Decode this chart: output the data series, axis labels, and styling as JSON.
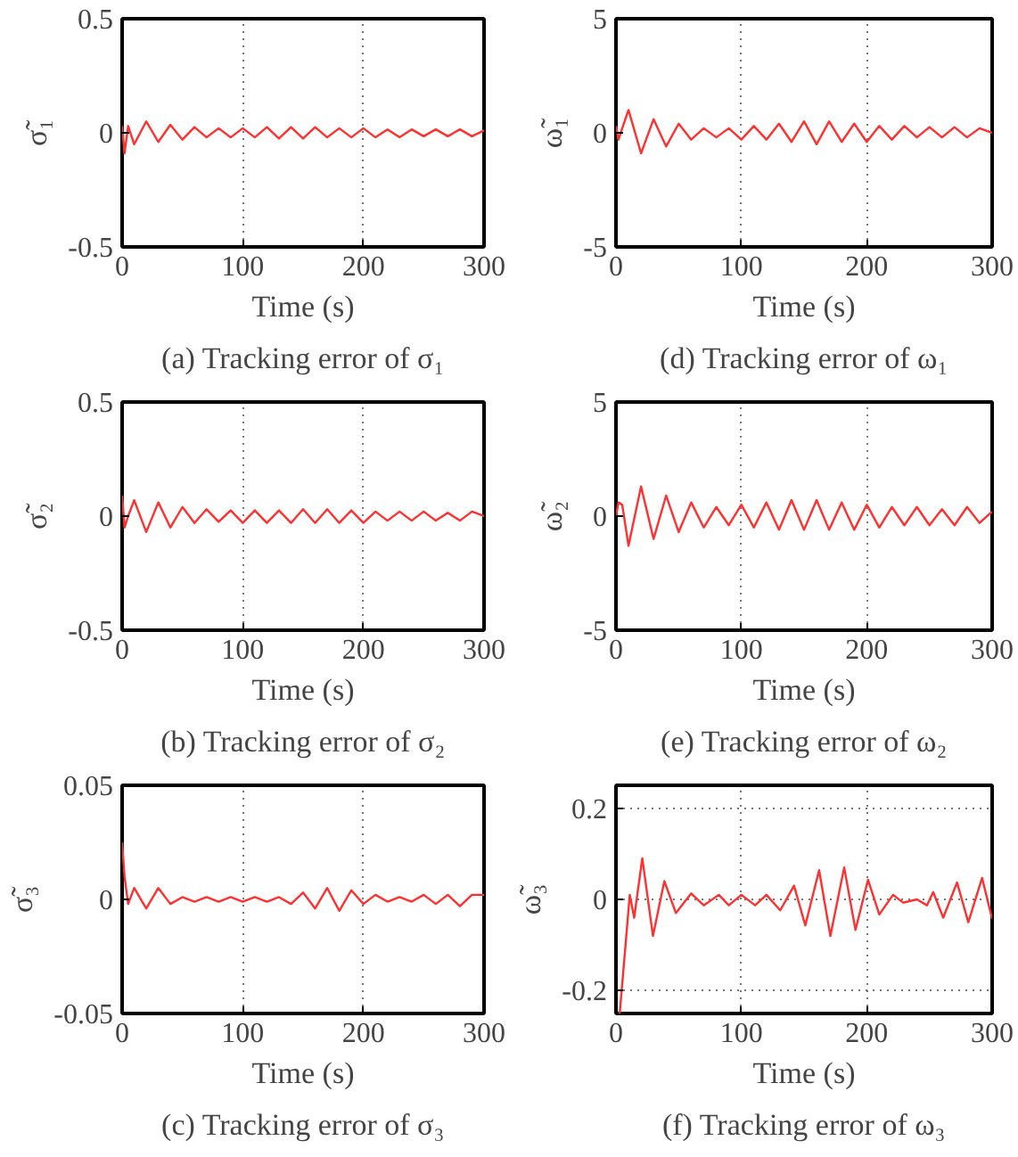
{
  "chart_data": [
    {
      "type": "line",
      "title": "(a) Tracking error of σ₁",
      "xlabel": "Time (s)",
      "ylabel": "σ̃₁",
      "color": "#ff3030",
      "grid": "x",
      "xlim": [
        0,
        300
      ],
      "ylim": [
        -0.5,
        0.5
      ],
      "xticks": [
        0,
        100,
        200,
        300
      ],
      "yticks": [
        -0.5,
        0,
        0.5
      ],
      "x": [
        0,
        2,
        5,
        10,
        20,
        30,
        40,
        50,
        60,
        70,
        80,
        90,
        100,
        110,
        120,
        130,
        140,
        150,
        160,
        170,
        180,
        190,
        200,
        210,
        220,
        230,
        240,
        250,
        260,
        270,
        280,
        290,
        300
      ],
      "values": [
        0.03,
        -0.09,
        0.03,
        -0.05,
        0.05,
        -0.04,
        0.035,
        -0.03,
        0.025,
        -0.02,
        0.02,
        -0.02,
        0.02,
        -0.02,
        0.025,
        -0.025,
        0.025,
        -0.025,
        0.025,
        -0.02,
        0.02,
        -0.02,
        0.02,
        -0.02,
        0.015,
        -0.02,
        0.015,
        -0.015,
        0.015,
        -0.015,
        0.015,
        -0.015,
        0.01
      ]
    },
    {
      "type": "line",
      "title": "(d) Tracking error of ω₁",
      "xlabel": "Time (s)",
      "ylabel": "ω̃₁",
      "color": "#ff3030",
      "grid": "x",
      "xlim": [
        0,
        300
      ],
      "ylim": [
        -5,
        5
      ],
      "xticks": [
        0,
        100,
        200,
        300
      ],
      "yticks": [
        -5,
        0,
        5
      ],
      "x": [
        0,
        2,
        5,
        10,
        20,
        30,
        40,
        50,
        60,
        70,
        80,
        90,
        100,
        110,
        120,
        130,
        140,
        150,
        160,
        170,
        180,
        190,
        200,
        210,
        220,
        230,
        240,
        250,
        260,
        270,
        280,
        290,
        300
      ],
      "values": [
        0.3,
        -0.3,
        0.2,
        1.0,
        -0.9,
        0.6,
        -0.6,
        0.4,
        -0.3,
        0.2,
        -0.2,
        0.2,
        -0.3,
        0.3,
        -0.3,
        0.4,
        -0.4,
        0.5,
        -0.5,
        0.5,
        -0.4,
        0.4,
        -0.4,
        0.3,
        -0.3,
        0.3,
        -0.2,
        0.25,
        -0.2,
        0.25,
        -0.2,
        0.2,
        0
      ]
    },
    {
      "type": "line",
      "title": "(b) Tracking error of σ₂",
      "xlabel": "Time (s)",
      "ylabel": "σ̃₂",
      "color": "#ff3030",
      "grid": "x",
      "xlim": [
        0,
        300
      ],
      "ylim": [
        -0.5,
        0.5
      ],
      "xticks": [
        0,
        100,
        200,
        300
      ],
      "yticks": [
        -0.5,
        0,
        0.5
      ],
      "x": [
        0,
        2,
        5,
        10,
        20,
        30,
        40,
        50,
        60,
        70,
        80,
        90,
        100,
        110,
        120,
        130,
        140,
        150,
        160,
        170,
        180,
        190,
        200,
        210,
        220,
        230,
        240,
        250,
        260,
        270,
        280,
        290,
        300
      ],
      "values": [
        0.09,
        -0.05,
        0.0,
        0.07,
        -0.07,
        0.06,
        -0.05,
        0.04,
        -0.03,
        0.03,
        -0.025,
        0.025,
        -0.03,
        0.025,
        -0.03,
        0.025,
        -0.03,
        0.03,
        -0.03,
        0.03,
        -0.03,
        0.025,
        -0.03,
        0.02,
        -0.02,
        0.02,
        -0.02,
        0.02,
        -0.02,
        0.015,
        -0.02,
        0.02,
        0.0
      ]
    },
    {
      "type": "line",
      "title": "(e) Tracking error of ω₂",
      "xlabel": "Time (s)",
      "ylabel": "ω̃₂",
      "color": "#ff3030",
      "grid": "x",
      "xlim": [
        0,
        300
      ],
      "ylim": [
        -5,
        5
      ],
      "xticks": [
        0,
        100,
        200,
        300
      ],
      "yticks": [
        -5,
        0,
        5
      ],
      "x": [
        0,
        2,
        5,
        10,
        20,
        30,
        40,
        50,
        60,
        70,
        80,
        90,
        100,
        110,
        120,
        130,
        140,
        150,
        160,
        170,
        180,
        190,
        200,
        210,
        220,
        230,
        240,
        250,
        260,
        270,
        280,
        290,
        300
      ],
      "values": [
        0,
        0.6,
        0.5,
        -1.3,
        1.3,
        -1.0,
        0.9,
        -0.7,
        0.6,
        -0.5,
        0.4,
        -0.4,
        0.5,
        -0.5,
        0.6,
        -0.6,
        0.7,
        -0.6,
        0.7,
        -0.6,
        0.6,
        -0.6,
        0.5,
        -0.5,
        0.4,
        -0.4,
        0.4,
        -0.4,
        0.3,
        -0.4,
        0.4,
        -0.3,
        0.2
      ]
    },
    {
      "type": "line",
      "title": "(c) Tracking error of σ₃",
      "xlabel": "Time (s)",
      "ylabel": "σ̃₃",
      "color": "#ff3030",
      "grid": "x",
      "xlim": [
        0,
        300
      ],
      "ylim": [
        -0.05,
        0.05
      ],
      "xticks": [
        0,
        100,
        200,
        300
      ],
      "yticks": [
        -0.05,
        0,
        0.05
      ],
      "x": [
        0,
        2,
        5,
        10,
        20,
        30,
        40,
        50,
        60,
        70,
        80,
        90,
        100,
        110,
        120,
        130,
        140,
        150,
        160,
        170,
        180,
        190,
        200,
        210,
        220,
        230,
        240,
        250,
        260,
        270,
        280,
        290,
        300
      ],
      "values": [
        0.025,
        0.01,
        -0.002,
        0.005,
        -0.004,
        0.005,
        -0.002,
        0.001,
        -0.001,
        0.001,
        -0.001,
        0.001,
        -0.001,
        0.001,
        -0.001,
        0.001,
        -0.002,
        0.003,
        -0.004,
        0.005,
        -0.005,
        0.004,
        -0.002,
        0.002,
        -0.001,
        0.001,
        -0.001,
        0.002,
        -0.002,
        0.002,
        -0.003,
        0.002,
        0.002
      ]
    },
    {
      "type": "line",
      "title": "(f) Tracking error of ω₃",
      "xlabel": "Time (s)",
      "ylabel": "ω̃₃",
      "color": "#ff3030",
      "grid": true,
      "xlim": [
        0,
        300
      ],
      "ylim": [
        -0.25,
        0.25
      ],
      "xticks": [
        0,
        100,
        200,
        300
      ],
      "yticks": [
        -0.2,
        0,
        0.2
      ],
      "x": [
        3,
        11,
        14.5,
        21,
        29.5,
        38.6,
        47.8,
        60,
        70,
        82,
        90,
        100,
        111,
        120,
        131,
        142,
        151,
        162,
        171,
        182,
        191,
        201,
        210,
        221,
        229,
        240,
        248,
        253,
        261,
        272,
        281,
        292,
        300
      ],
      "values": [
        -0.25,
        0.01,
        -0.04,
        0.09,
        -0.08,
        0.04,
        -0.03,
        0.013,
        -0.013,
        0.01,
        -0.013,
        0.01,
        -0.013,
        0.01,
        -0.024,
        0.03,
        -0.057,
        0.064,
        -0.08,
        0.07,
        -0.067,
        0.043,
        -0.033,
        0.01,
        -0.007,
        0,
        -0.013,
        0.016,
        -0.04,
        0.037,
        -0.05,
        0.047,
        -0.043
      ]
    }
  ]
}
